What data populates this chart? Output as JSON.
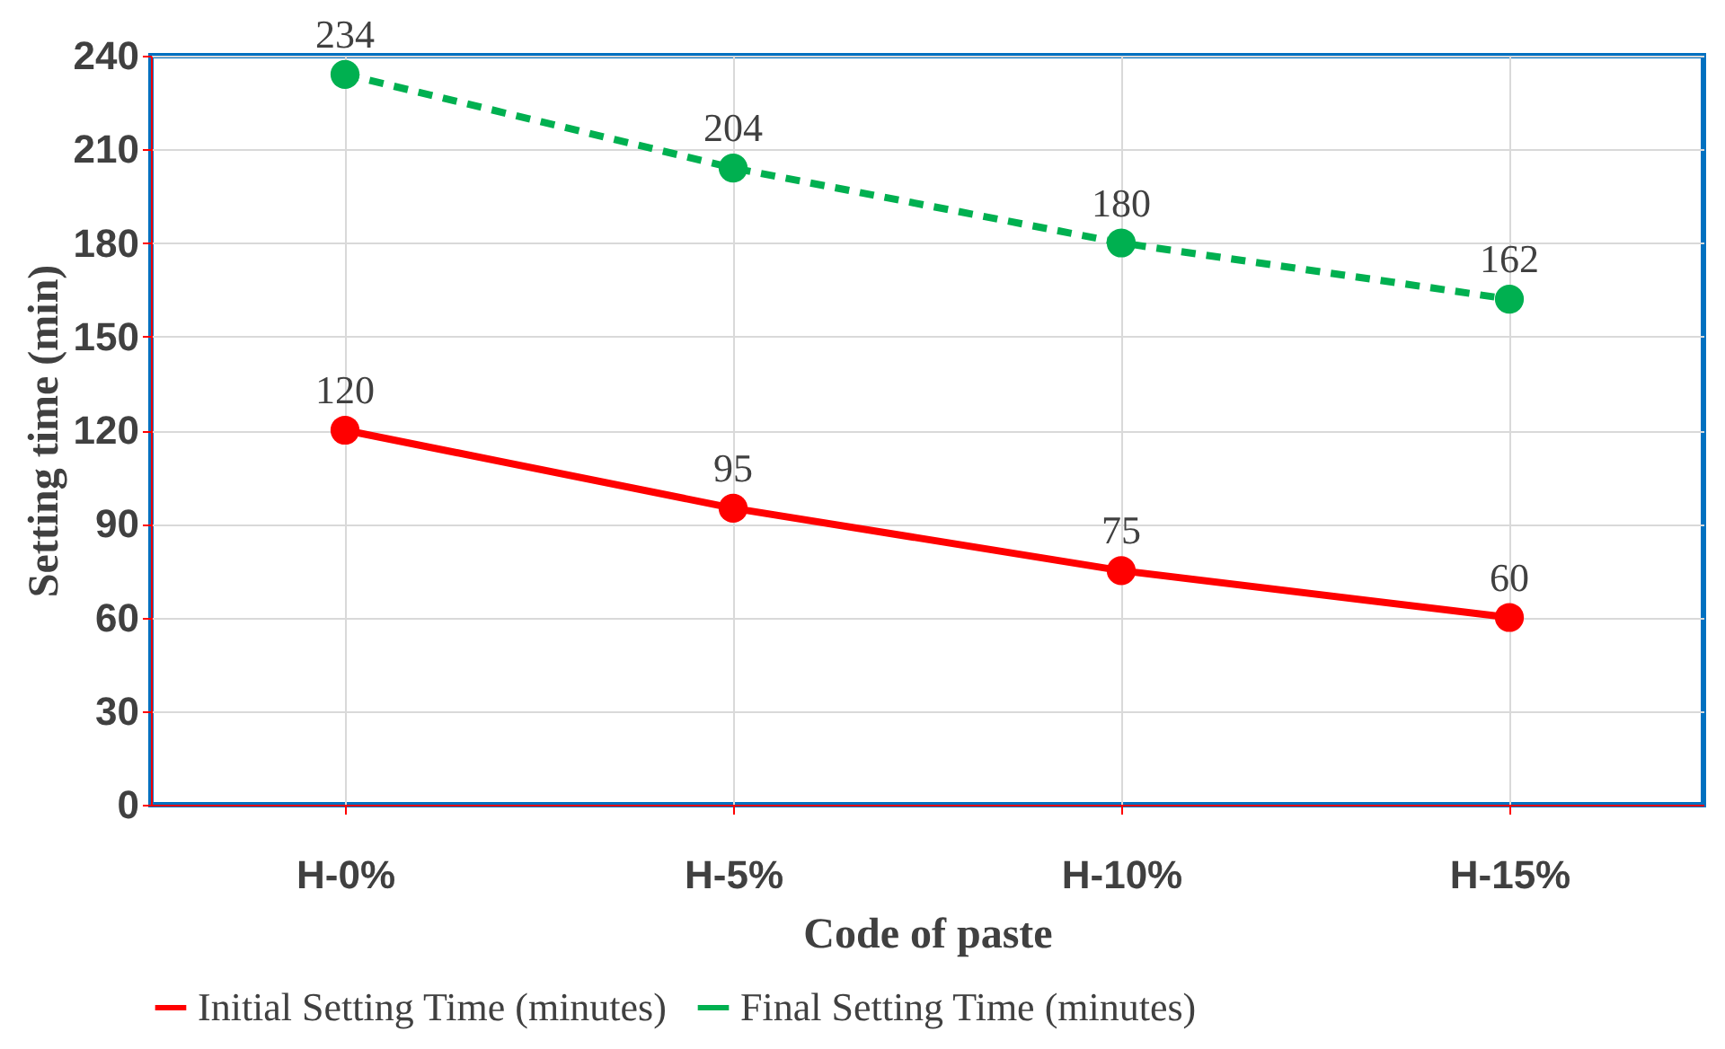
{
  "chart_data": {
    "type": "line",
    "xlabel": "Code of paste",
    "ylabel": "Setting time (min)",
    "categories": [
      "H-0%",
      "H-5%",
      "H-10%",
      "H-15%"
    ],
    "series": [
      {
        "name": "Initial Setting Time (minutes)",
        "color": "#ff0000",
        "values": [
          120,
          95,
          75,
          60
        ],
        "line_style": "solid"
      },
      {
        "name": "Final Setting Time (minutes)",
        "color": "#00b050",
        "values": [
          234,
          204,
          180,
          162
        ],
        "line_style": "dashed"
      }
    ],
    "ylim": [
      0,
      240
    ],
    "yticks": [
      0,
      30,
      60,
      90,
      120,
      150,
      180,
      210,
      240
    ],
    "grid": true,
    "legend": "bottom",
    "marker": "circle",
    "data_labels": true
  }
}
